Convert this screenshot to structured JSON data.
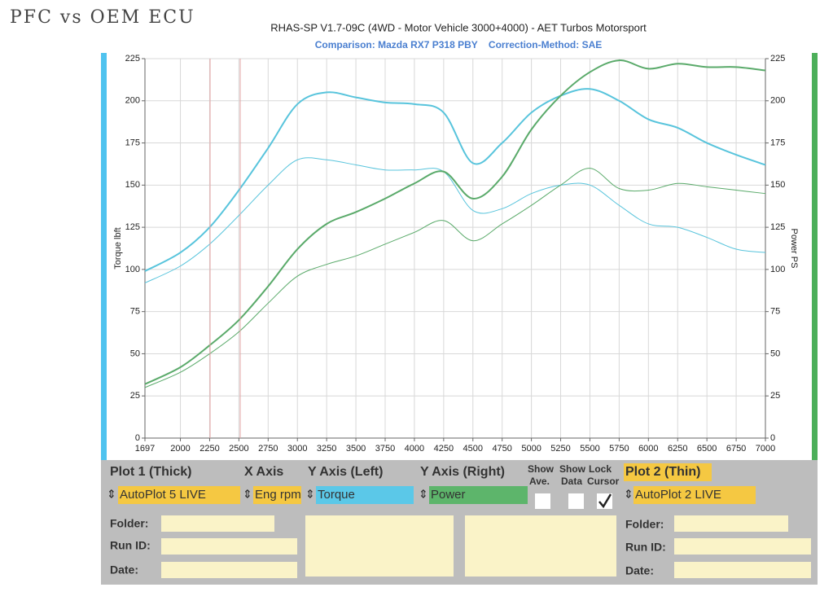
{
  "handwritten_note": "PFC vs OEM ECU",
  "chart_data": {
    "type": "line",
    "title": "RHAS-SP V1.7-09C  (4WD - Motor Vehicle 3000+4000) - AET Turbos Motorsport",
    "subtitle": "Comparison: Mazda RX7 P318 PBY    Correction-Method: SAE",
    "y_label": "Torque lbft",
    "y2_label": "Power PS",
    "x": [
      1697,
      2000,
      2250,
      2500,
      2750,
      3000,
      3250,
      3500,
      3750,
      4000,
      4250,
      4500,
      4750,
      5000,
      5250,
      5500,
      5750,
      6000,
      6250,
      6500,
      6750,
      7000
    ],
    "xlim": [
      1697,
      7000
    ],
    "xticks": [
      1697,
      2000,
      2250,
      2500,
      2750,
      3000,
      3250,
      3500,
      3750,
      4000,
      4250,
      4500,
      4750,
      5000,
      5250,
      5500,
      5750,
      6000,
      6250,
      6500,
      6750,
      7000
    ],
    "ylim": [
      0,
      225
    ],
    "yticks": [
      0,
      25,
      50,
      75,
      100,
      125,
      150,
      175,
      200,
      225
    ],
    "y2lim": [
      0,
      225
    ],
    "y2ticks": [
      0,
      25,
      50,
      75,
      100,
      125,
      150,
      175,
      200,
      225
    ],
    "grid": true,
    "series": [
      {
        "color": "#58c4dc",
        "values": [
          99,
          110,
          125,
          147,
          172,
          198,
          205,
          202,
          199,
          198,
          193,
          163,
          175,
          193,
          203,
          207,
          200,
          189,
          184,
          175,
          168,
          162
        ]
      },
      {
        "color": "#58c4dc",
        "values": [
          92,
          102,
          115,
          132,
          150,
          165,
          165,
          162,
          159,
          159,
          158,
          135,
          136,
          145,
          150,
          150,
          138,
          127,
          125,
          119,
          112,
          110
        ]
      },
      {
        "color": "#5aaa6a",
        "axis": "y2",
        "values": [
          32,
          42,
          55,
          70,
          90,
          112,
          127,
          134,
          142,
          151,
          158,
          142,
          155,
          183,
          203,
          217,
          224,
          219,
          222,
          220,
          220,
          218
        ]
      },
      {
        "color": "#5aaa6a",
        "axis": "y2",
        "values": [
          30,
          39,
          50,
          63,
          80,
          96,
          103,
          108,
          115,
          122,
          129,
          117,
          127,
          138,
          150,
          160,
          148,
          147,
          151,
          149,
          147,
          145
        ]
      }
    ]
  },
  "panel": {
    "plot1_heading": "Plot 1 (Thick)",
    "x_axis_heading": "X Axis",
    "y_left_heading": "Y Axis (Left)",
    "y_right_heading": "Y Axis (Right)",
    "show_ave": [
      "Show",
      "Ave."
    ],
    "show_data": [
      "Show",
      "Data"
    ],
    "lock_cursor": [
      "Lock",
      "Cursor"
    ],
    "plot2_heading": "Plot 2 (Thin)",
    "plot1_select": "AutoPlot 5 LIVE",
    "x_axis_select": "Eng rpm",
    "y_left_select": "Torque",
    "y_right_select": "Power",
    "plot2_select": "AutoPlot 2 LIVE",
    "checkboxes": [
      false,
      false,
      true
    ],
    "left_fields": [
      "Folder:",
      "Run ID:",
      "Date:"
    ],
    "right_fields": [
      "Folder:",
      "Run ID:",
      "Date:"
    ]
  }
}
